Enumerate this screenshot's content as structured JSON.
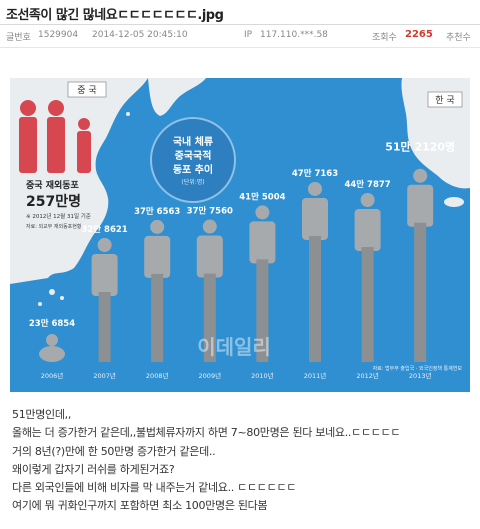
{
  "post": {
    "title": "조선족이 많긴 많네요ㄷㄷㄷㄷㄷㄷㄷ.jpg",
    "number_label": "글번호",
    "number": "1529904",
    "datetime": "2014-12-05 20:45:10",
    "ip_label": "IP",
    "ip": "117.110.***.58",
    "views_label": "조회수",
    "views": "2265",
    "recommend_label": "추천수"
  },
  "infographic": {
    "china_label": "중 국",
    "china_caption": "중국 재외동포",
    "china_value": "257만명",
    "china_note": "※ 2012년 12월 31일 기준",
    "china_source": "자료: 외교부 재외동포현황",
    "korea_label": "한 국",
    "bubble_lines": [
      "국내 체류",
      "중국국적",
      "동포 추이"
    ],
    "bubble_unit": "(단위:명)",
    "watermark": "이데일리",
    "source": "자료: 법무부 출입국 · 외국인정책 통계연보"
  },
  "chart_data": {
    "type": "bar",
    "categories": [
      "2006년",
      "2007년",
      "2008년",
      "2009년",
      "2010년",
      "2011년",
      "2012년",
      "2013년"
    ],
    "values": [
      236854,
      328621,
      376563,
      377560,
      415004,
      477163,
      447877,
      512120
    ],
    "value_labels": [
      "23만 6854",
      "32만 8621",
      "37만 6563",
      "37만 7560",
      "41만 5004",
      "47만 7163",
      "44만 7877",
      "51만 2120명"
    ]
  },
  "body": {
    "lines": [
      "51만명인데,,",
      "올해는 더 증가한거 같은데,,불법체류자까지 하면 7~80만명은 된다 보네요..ㄷㄷㄷㄷㄷ",
      "거의 8년(?)만에 한 50만명 증가한거 같은데..",
      "왜이렇게 갑자기 러쉬를 하게된거죠?",
      "다른 외국인들에 비해 비자를 막 내주는거 같네요.. ㄷㄷㄷㄷㄷㄷ",
      "여기에 뭐 귀화인구까지 포함하면 최소 100만명은 된다봄"
    ]
  },
  "colors": {
    "sea": "#2f8fd0",
    "land": "#e9edf0",
    "figure": "#a7aaad",
    "figure_dark": "#8c9093",
    "china_figure": "#d6474f",
    "bubble": "#2d7fc0",
    "views": "#d03a2f"
  }
}
